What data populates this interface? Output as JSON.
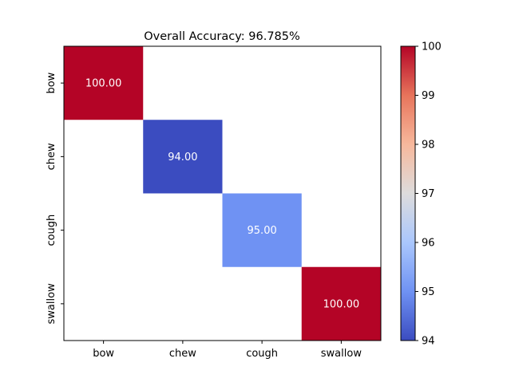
{
  "chart_data": {
    "type": "heatmap",
    "title": "Overall Accuracy: 96.785%",
    "xlabel": "",
    "ylabel": "",
    "x_categories": [
      "bow",
      "chew",
      "cough",
      "swallow"
    ],
    "y_categories": [
      "bow",
      "chew",
      "cough",
      "swallow"
    ],
    "cells": [
      {
        "row": 0,
        "col": 0,
        "value": 100.0,
        "label": "100.00"
      },
      {
        "row": 1,
        "col": 1,
        "value": 94.0,
        "label": "94.00"
      },
      {
        "row": 2,
        "col": 2,
        "value": 95.0,
        "label": "95.00"
      },
      {
        "row": 3,
        "col": 3,
        "value": 100.0,
        "label": "100.00"
      }
    ],
    "colorbar": {
      "colormap": "coolwarm",
      "range": [
        94,
        100
      ],
      "ticks": [
        "94",
        "95",
        "96",
        "97",
        "98",
        "99",
        "100"
      ]
    },
    "grid": false
  }
}
